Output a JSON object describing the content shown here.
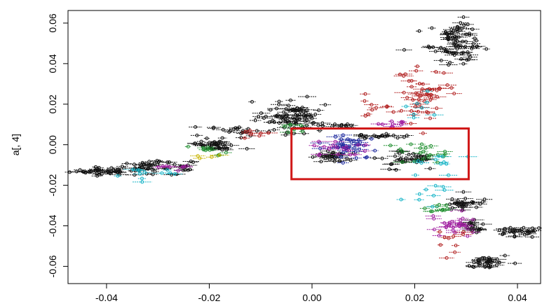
{
  "chart_data": {
    "type": "scatter",
    "title": "",
    "xlabel": "",
    "ylabel": "a[, 4]",
    "xlim": [
      -0.0475,
      0.0445
    ],
    "ylim": [
      -0.0685,
      0.0662
    ],
    "x_ticks": [
      -0.04,
      -0.02,
      0.0,
      0.02,
      0.04
    ],
    "x_tick_labels": [
      "-0.04",
      "-0.02",
      "0.00",
      "0.02",
      "0.04"
    ],
    "y_ticks": [
      -0.06,
      -0.04,
      -0.02,
      0.0,
      0.02,
      0.04,
      0.06
    ],
    "y_tick_labels": [
      "-0.06",
      "-0.04",
      "-0.02",
      "0.00",
      "0.02",
      "0.04",
      "0.06"
    ],
    "error_bars": "horizontal",
    "grid": false,
    "legend": "none",
    "palette": {
      "black": "#111111",
      "red": "#b22222",
      "green": "#1f8f2f",
      "blue": "#1e2a9e",
      "cyan": "#19b5c8",
      "magenta": "#a01ea0",
      "yellow": "#c8b400",
      "gray": "#888888"
    },
    "clusters": [
      {
        "name": "",
        "color": "black",
        "x": -0.041,
        "y": -0.013,
        "sx": 0.003,
        "sy": 0.001,
        "n": 40
      },
      {
        "name": "",
        "color": "black",
        "x": -0.032,
        "y": -0.011,
        "sx": 0.0028,
        "sy": 0.0016,
        "n": 45
      },
      {
        "name": "",
        "color": "cyan",
        "x": -0.033,
        "y": -0.014,
        "sx": 0.003,
        "sy": 0.0015,
        "n": 12
      },
      {
        "name": "",
        "color": "magenta",
        "x": -0.027,
        "y": -0.01,
        "sx": 0.002,
        "sy": 0.0015,
        "n": 8
      },
      {
        "name": "",
        "color": "black",
        "x": -0.025,
        "y": -0.012,
        "sx": 0.0015,
        "sy": 0.002,
        "n": 10
      },
      {
        "name": "",
        "color": "black",
        "x": -0.019,
        "y": 0.0,
        "sx": 0.0022,
        "sy": 0.0018,
        "n": 40
      },
      {
        "name": "",
        "color": "green",
        "x": -0.021,
        "y": -0.002,
        "sx": 0.002,
        "sy": 0.0012,
        "n": 10
      },
      {
        "name": "",
        "color": "yellow",
        "x": -0.0205,
        "y": -0.004,
        "sx": 0.0012,
        "sy": 0.0008,
        "n": 4
      },
      {
        "name": "",
        "color": "black",
        "x": -0.014,
        "y": 0.007,
        "sx": 0.0025,
        "sy": 0.0015,
        "n": 18
      },
      {
        "name": "",
        "color": "red",
        "x": -0.011,
        "y": 0.005,
        "sx": 0.002,
        "sy": 0.0015,
        "n": 8
      },
      {
        "name": "",
        "color": "black",
        "x": -0.004,
        "y": 0.014,
        "sx": 0.003,
        "sy": 0.0035,
        "n": 90
      },
      {
        "name": "",
        "color": "green",
        "x": -0.003,
        "y": 0.008,
        "sx": 0.002,
        "sy": 0.0015,
        "n": 8
      },
      {
        "name": "",
        "color": "black",
        "x": 0.003,
        "y": 0.009,
        "sx": 0.002,
        "sy": 0.0012,
        "n": 10
      },
      {
        "name": "",
        "color": "black",
        "x": 0.013,
        "y": 0.004,
        "sx": 0.0028,
        "sy": 0.0008,
        "n": 20
      },
      {
        "name": "",
        "color": "black",
        "x": 0.004,
        "y": -0.006,
        "sx": 0.0025,
        "sy": 0.0015,
        "n": 30
      },
      {
        "name": "",
        "color": "blue",
        "x": 0.007,
        "y": -0.001,
        "sx": 0.003,
        "sy": 0.0028,
        "n": 40
      },
      {
        "name": "",
        "color": "magenta",
        "x": 0.005,
        "y": -0.002,
        "sx": 0.003,
        "sy": 0.0022,
        "n": 18
      },
      {
        "name": "",
        "color": "black",
        "x": 0.018,
        "y": -0.007,
        "sx": 0.0028,
        "sy": 0.0018,
        "n": 40
      },
      {
        "name": "",
        "color": "green",
        "x": 0.022,
        "y": -0.004,
        "sx": 0.003,
        "sy": 0.003,
        "n": 20
      },
      {
        "name": "",
        "color": "cyan",
        "x": 0.024,
        "y": -0.009,
        "sx": 0.003,
        "sy": 0.003,
        "n": 10
      },
      {
        "name": "",
        "color": "magenta",
        "x": 0.016,
        "y": 0.01,
        "sx": 0.0018,
        "sy": 0.0012,
        "n": 10
      },
      {
        "name": "",
        "color": "red",
        "x": 0.022,
        "y": 0.025,
        "sx": 0.0025,
        "sy": 0.006,
        "n": 50
      },
      {
        "name": "",
        "color": "cyan",
        "x": 0.021,
        "y": 0.02,
        "sx": 0.002,
        "sy": 0.003,
        "n": 8
      },
      {
        "name": "",
        "color": "red",
        "x": 0.015,
        "y": 0.018,
        "sx": 0.003,
        "sy": 0.002,
        "n": 12
      },
      {
        "name": "",
        "color": "black",
        "x": 0.028,
        "y": 0.051,
        "sx": 0.0025,
        "sy": 0.005,
        "n": 85
      },
      {
        "name": "",
        "color": "black",
        "x": 0.029,
        "y": -0.029,
        "sx": 0.0018,
        "sy": 0.0018,
        "n": 30
      },
      {
        "name": "",
        "color": "magenta",
        "x": 0.027,
        "y": -0.04,
        "sx": 0.002,
        "sy": 0.003,
        "n": 30
      },
      {
        "name": "",
        "color": "black",
        "x": 0.031,
        "y": -0.041,
        "sx": 0.0015,
        "sy": 0.002,
        "n": 20
      },
      {
        "name": "",
        "color": "black",
        "x": 0.04,
        "y": -0.043,
        "sx": 0.0025,
        "sy": 0.0012,
        "n": 30
      },
      {
        "name": "",
        "color": "black",
        "x": 0.034,
        "y": -0.058,
        "sx": 0.002,
        "sy": 0.0018,
        "n": 35
      },
      {
        "name": "",
        "color": "green",
        "x": 0.025,
        "y": -0.031,
        "sx": 0.0015,
        "sy": 0.002,
        "n": 10
      },
      {
        "name": "",
        "color": "cyan",
        "x": 0.023,
        "y": -0.024,
        "sx": 0.0018,
        "sy": 0.004,
        "n": 10
      },
      {
        "name": "",
        "color": "red",
        "x": 0.027,
        "y": -0.048,
        "sx": 0.0015,
        "sy": 0.003,
        "n": 10
      },
      {
        "name": "",
        "color": "red",
        "x": 0.017,
        "y": 0.034,
        "sx": 0.0008,
        "sy": 0.0006,
        "n": 2
      }
    ],
    "highlight_box": {
      "x0": -0.004,
      "x1": 0.0305,
      "y0": -0.017,
      "y1": 0.008,
      "color": "#d01818"
    }
  }
}
